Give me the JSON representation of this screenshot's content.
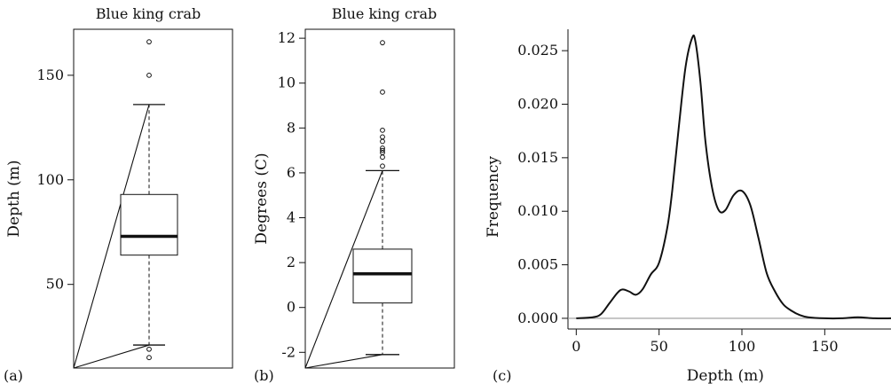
{
  "chart_data": [
    {
      "type": "box",
      "panel_label": "(a)",
      "title": "Blue king crab",
      "ylabel": "Depth (m)",
      "xlabel": "",
      "ylim": [
        10,
        172
      ],
      "yticks": [
        50,
        100,
        150
      ],
      "grid": false,
      "box": {
        "whisker_low": 21,
        "q1": 64,
        "median": 73,
        "q3": 93,
        "whisker_high": 136,
        "outliers": [
          19,
          15,
          150,
          166
        ]
      }
    },
    {
      "type": "box",
      "panel_label": "(b)",
      "title": "Blue king crab",
      "ylabel": "Degrees (C)",
      "xlabel": "",
      "ylim": [
        -2.7,
        12.4
      ],
      "yticks": [
        -2,
        0,
        2,
        4,
        6,
        8,
        10,
        12
      ],
      "grid": false,
      "box": {
        "whisker_low": -2.1,
        "q1": 0.2,
        "median": 1.5,
        "q3": 2.6,
        "whisker_high": 6.1,
        "outliers": [
          6.3,
          6.7,
          6.9,
          7.0,
          7.1,
          7.4,
          7.6,
          7.9,
          9.6,
          11.8
        ]
      }
    },
    {
      "type": "line",
      "panel_label": "(c)",
      "title": "",
      "xlabel": "Depth (m)",
      "ylabel": "Frequency",
      "xlim": [
        -5,
        190
      ],
      "ylim": [
        -0.001,
        0.027
      ],
      "xticks": [
        0,
        50,
        100,
        150
      ],
      "yticks": [
        "0.000",
        "0.005",
        "0.010",
        "0.015",
        "0.020",
        "0.025"
      ],
      "grid": false,
      "series": [
        {
          "name": "",
          "x": [
            0,
            10,
            15,
            20,
            25,
            28,
            32,
            36,
            40,
            45,
            50,
            55,
            58,
            62,
            66,
            70,
            72,
            75,
            78,
            82,
            86,
            90,
            95,
            100,
            105,
            110,
            115,
            120,
            125,
            130,
            135,
            140,
            150,
            160,
            170,
            180,
            190
          ],
          "y": [
            0,
            0.0001,
            0.0004,
            0.0014,
            0.0024,
            0.0027,
            0.0025,
            0.0022,
            0.0027,
            0.0041,
            0.0052,
            0.0085,
            0.012,
            0.018,
            0.0235,
            0.0262,
            0.0258,
            0.022,
            0.0165,
            0.0122,
            0.0101,
            0.0101,
            0.0115,
            0.0119,
            0.0106,
            0.0075,
            0.0042,
            0.0025,
            0.0013,
            0.0007,
            0.0003,
            0.0001,
            0,
            0,
            0.0001,
            0,
            0
          ]
        }
      ],
      "baseline": 0
    }
  ]
}
